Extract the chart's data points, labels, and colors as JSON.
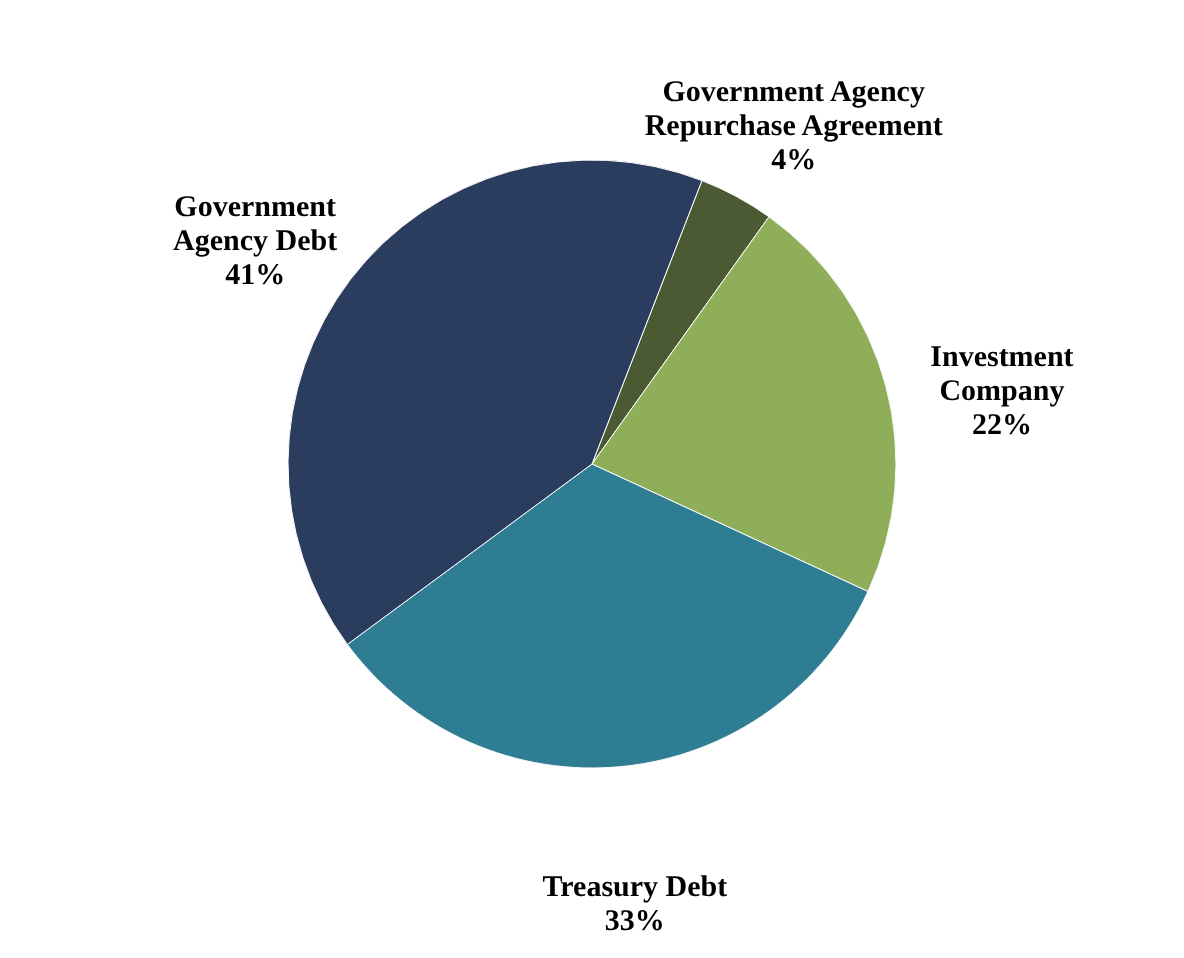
{
  "chart_data": {
    "type": "pie",
    "categories": [
      "Government Agency Repurchase Agreement",
      "Investment Company",
      "Treasury Debt",
      "Government Agency Debt"
    ],
    "values": [
      4,
      22,
      33,
      41
    ],
    "value_labels": [
      "4%",
      "22%",
      "33%",
      "41%"
    ],
    "colors": [
      "#4b5a32",
      "#8fae5a",
      "#2f7d93",
      "#2a3d5f"
    ]
  }
}
